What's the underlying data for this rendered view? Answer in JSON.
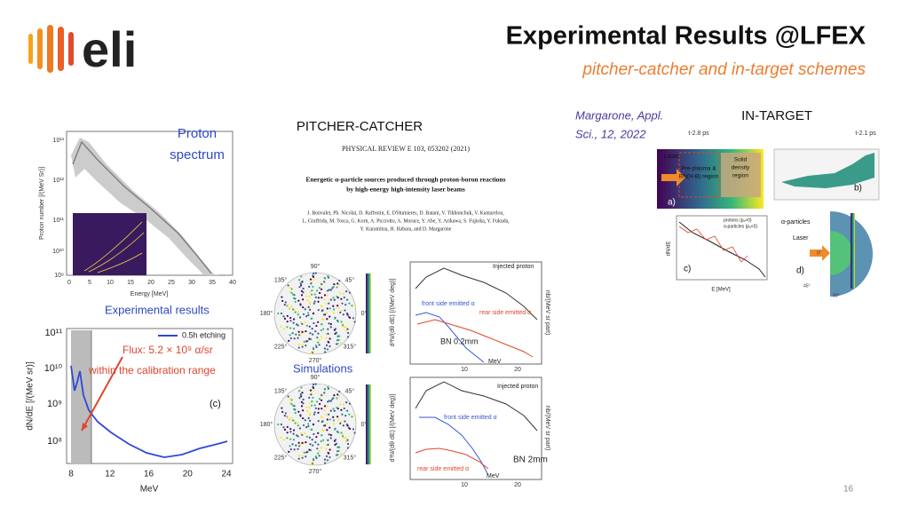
{
  "header": {
    "logo": "eli",
    "title": "Experimental Results @LFEX",
    "subtitle": "pitcher-catcher and in-target schemes"
  },
  "proton_panel": {
    "label": [
      "Proton",
      "spectrum"
    ],
    "xlabel": "Energy [MeV]",
    "ylabel": "Proton number [/(MeV Sr)]",
    "xticks": [
      "0",
      "5",
      "10",
      "15",
      "20",
      "25",
      "30",
      "35",
      "40"
    ],
    "yticks": [
      "10¹³",
      "10¹²",
      "10¹¹",
      "10¹⁰",
      "10⁹"
    ]
  },
  "experimental_panel": {
    "title": "Experimental results",
    "legend": "0.5h etching",
    "flux": "Flux: 5.2 × 10⁹ α/sr",
    "note": "within the calibration range",
    "panel": "(c)",
    "ylabel": "dN/dE [/(MeV sr)]",
    "xlabel": "MeV",
    "xticks": [
      "8",
      "12",
      "16",
      "20",
      "24"
    ],
    "yticks": [
      "10¹¹",
      "10¹⁰",
      "10⁹",
      "10⁸"
    ]
  },
  "pitcher_catcher": {
    "heading": "PITCHER-CATCHER",
    "journal": "PHYSICAL REVIEW E 103, 053202 (2021)",
    "paper_title": [
      "Energetic α-particle sources produced through proton-boron reactions",
      "by high-energy high-intensity laser beams"
    ],
    "authors": [
      "J. Bonvalet, Ph. Nicolaï, D. Raffestin, E. D'Humieres, D. Batani, V. Tikhonchuk, V. Kantarelou,",
      "L. Giuffrida, M. Tosca, G. Korn, A. Picciotto, A. Morace, Y. Abe, Y. Arikawa, S. Fujioka, Y. Fukuda,",
      "Y. Kuramitsu, H. Habara, and D. Margarone"
    ],
    "polar_labels": [
      "90°",
      "45°",
      "0°",
      "315°",
      "270°",
      "225°",
      "180°",
      "135°"
    ],
    "colorbar_label": "d²N/(dθ dE) [/(MeV deg)]",
    "simulations": "Simulations",
    "injected": "Injected proton",
    "front": "front side emitted α",
    "rear": "rear side emitted α",
    "case_thin": "BN 0.2mm",
    "case_thick": "BN 2mm",
    "xlabel": "MeV",
    "xticks": [
      "10",
      "20"
    ],
    "ylabel": "nb/(MeV sr part)"
  },
  "in_target": {
    "citation": [
      "Margarone, Appl.",
      "Sci., 12, 2022"
    ],
    "heading": "IN-TARGET",
    "panels": [
      "a)",
      "b)",
      "c)",
      "d)"
    ],
    "laser": "Laser",
    "preplasma": [
      "Pre-plasma &",
      "BN(H-B) region"
    ],
    "solid": [
      "Solid",
      "density",
      "region"
    ],
    "time_a": "t-2.8 ps",
    "time_b": "t-2.1 ps",
    "legend": [
      "protons (pₓ>0)",
      "α-particles (pₓ<0)"
    ],
    "xlabel": "E [MeV]",
    "ylabel": "dN/dE",
    "alpha": "α-particles"
  },
  "page_number": "16"
}
